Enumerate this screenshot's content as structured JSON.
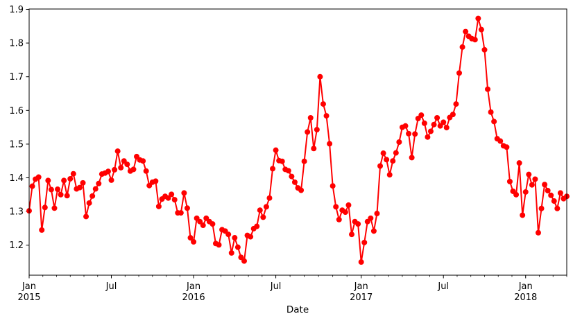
{
  "figure": {
    "background": "#ffffff",
    "axis_color": "#000000"
  },
  "chart_data": {
    "type": "line",
    "title": "",
    "xlabel": "Date",
    "ylabel": "",
    "line_color": "#ff0000",
    "marker": "circle",
    "grid": false,
    "legend": false,
    "ylim": [
      1.111,
      1.901
    ],
    "yticks": [
      1.2,
      1.3,
      1.4,
      1.5,
      1.6,
      1.7,
      1.8,
      1.9
    ],
    "xticks": [
      {
        "index": 0,
        "label": "Jan",
        "year": "2015"
      },
      {
        "index": 26,
        "label": "Jul"
      },
      {
        "index": 52,
        "label": "Jan",
        "year": "2016"
      },
      {
        "index": 78,
        "label": "Jul"
      },
      {
        "index": 105,
        "label": "Jan",
        "year": "2017"
      },
      {
        "index": 131,
        "label": "Jul"
      },
      {
        "index": 157,
        "label": "Jan",
        "year": "2018"
      }
    ],
    "x_description": "weekly observations, Jan 2015 - late Mar 2018",
    "values": [
      1.302,
      1.375,
      1.396,
      1.402,
      1.245,
      1.312,
      1.392,
      1.365,
      1.31,
      1.366,
      1.35,
      1.392,
      1.347,
      1.397,
      1.412,
      1.367,
      1.371,
      1.385,
      1.285,
      1.325,
      1.346,
      1.367,
      1.383,
      1.411,
      1.414,
      1.419,
      1.393,
      1.424,
      1.479,
      1.43,
      1.45,
      1.44,
      1.42,
      1.425,
      1.463,
      1.453,
      1.45,
      1.42,
      1.377,
      1.387,
      1.39,
      1.315,
      1.337,
      1.345,
      1.34,
      1.351,
      1.335,
      1.296,
      1.296,
      1.355,
      1.31,
      1.222,
      1.21,
      1.28,
      1.27,
      1.259,
      1.28,
      1.27,
      1.263,
      1.205,
      1.201,
      1.246,
      1.242,
      1.232,
      1.177,
      1.222,
      1.194,
      1.164,
      1.153,
      1.229,
      1.225,
      1.249,
      1.256,
      1.304,
      1.283,
      1.314,
      1.34,
      1.427,
      1.482,
      1.451,
      1.449,
      1.425,
      1.421,
      1.404,
      1.387,
      1.37,
      1.363,
      1.449,
      1.536,
      1.578,
      1.487,
      1.543,
      1.7,
      1.619,
      1.584,
      1.501,
      1.376,
      1.314,
      1.276,
      1.304,
      1.298,
      1.319,
      1.232,
      1.27,
      1.263,
      1.15,
      1.208,
      1.27,
      1.28,
      1.242,
      1.294,
      1.435,
      1.473,
      1.454,
      1.409,
      1.45,
      1.474,
      1.506,
      1.55,
      1.554,
      1.531,
      1.46,
      1.53,
      1.576,
      1.586,
      1.562,
      1.521,
      1.538,
      1.558,
      1.578,
      1.554,
      1.565,
      1.549,
      1.579,
      1.588,
      1.619,
      1.711,
      1.788,
      1.834,
      1.82,
      1.813,
      1.81,
      1.873,
      1.84,
      1.78,
      1.663,
      1.595,
      1.567,
      1.516,
      1.509,
      1.495,
      1.491,
      1.389,
      1.36,
      1.35,
      1.444,
      1.289,
      1.358,
      1.41,
      1.379,
      1.396,
      1.237,
      1.309,
      1.38,
      1.362,
      1.348,
      1.331,
      1.309,
      1.355,
      1.338,
      1.345
    ]
  }
}
